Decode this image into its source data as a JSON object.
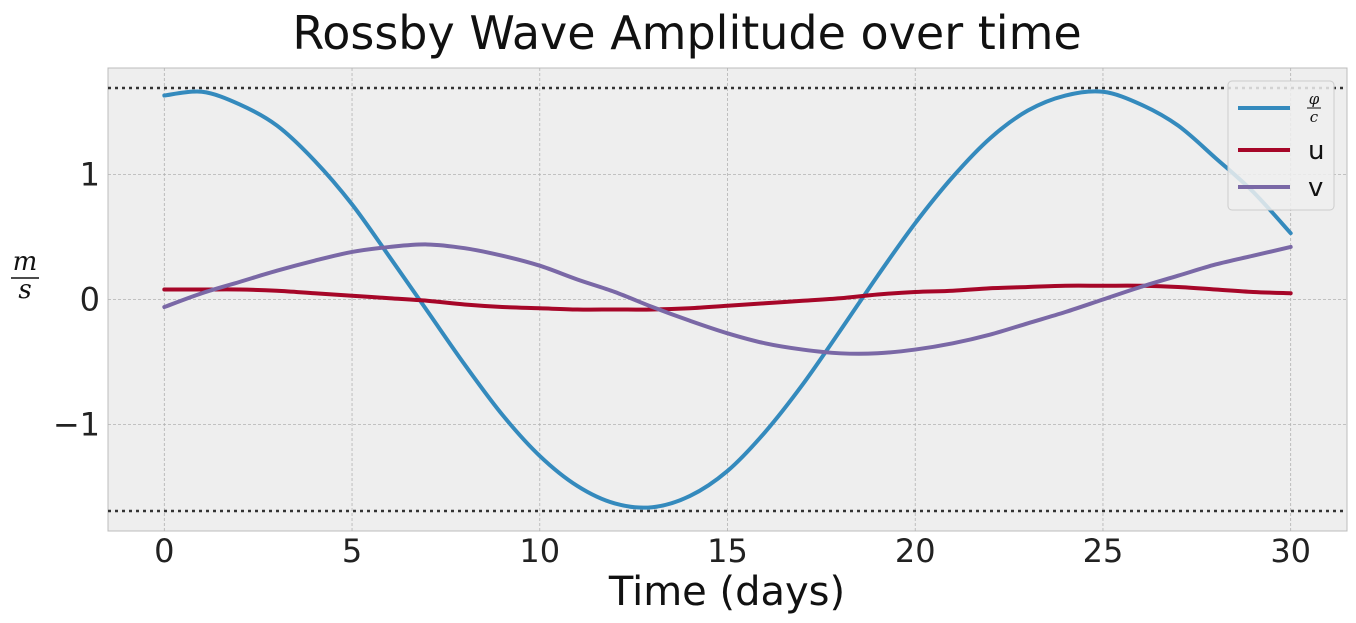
{
  "chart_data": {
    "type": "line",
    "title": "Rossby Wave Amplitude over time",
    "xlabel": "Time (days)",
    "ylabel": {
      "numerator": "m",
      "denominator": "s"
    },
    "xlim": [
      -1.5,
      31.5
    ],
    "ylim": [
      -1.85,
      1.85
    ],
    "xticks": [
      0,
      5,
      10,
      15,
      20,
      25,
      30
    ],
    "xtick_labels": [
      "0",
      "5",
      "10",
      "15",
      "20",
      "25",
      "30"
    ],
    "yticks": [
      -1,
      0,
      1
    ],
    "ytick_labels": [
      "−1",
      "0",
      "1"
    ],
    "grid": true,
    "legend_position": "top-right",
    "reference_lines": [
      1.69,
      -1.69
    ],
    "series": [
      {
        "name": {
          "numerator": "φ",
          "denominator": "c"
        },
        "legend_label": "φ/c",
        "color": "#348ABD",
        "x": [
          0,
          1,
          2,
          3,
          4,
          5,
          6,
          7,
          8,
          9,
          10,
          11,
          12,
          13,
          14,
          15,
          16,
          17,
          18,
          19,
          20,
          21,
          22,
          23,
          24,
          25,
          26,
          27,
          28,
          29,
          30
        ],
        "y": [
          1.63,
          1.66,
          1.56,
          1.39,
          1.11,
          0.76,
          0.34,
          -0.09,
          -0.52,
          -0.92,
          -1.25,
          -1.49,
          -1.63,
          -1.66,
          -1.57,
          -1.37,
          -1.06,
          -0.68,
          -0.25,
          0.19,
          0.61,
          0.98,
          1.29,
          1.51,
          1.63,
          1.66,
          1.56,
          1.39,
          1.13,
          0.86,
          0.53
        ]
      },
      {
        "name": "u",
        "legend_label": "u",
        "color": "#A60628",
        "x": [
          0,
          1,
          2,
          3,
          4,
          5,
          6,
          7,
          8,
          9,
          10,
          11,
          12,
          13,
          14,
          15,
          16,
          17,
          18,
          19,
          20,
          21,
          22,
          23,
          24,
          25,
          26,
          27,
          28,
          29,
          30
        ],
        "y": [
          0.08,
          0.08,
          0.08,
          0.07,
          0.05,
          0.03,
          0.01,
          -0.01,
          -0.04,
          -0.06,
          -0.07,
          -0.08,
          -0.08,
          -0.08,
          -0.07,
          -0.05,
          -0.03,
          -0.01,
          0.01,
          0.04,
          0.06,
          0.07,
          0.09,
          0.1,
          0.11,
          0.11,
          0.11,
          0.1,
          0.08,
          0.06,
          0.05
        ]
      },
      {
        "name": "v",
        "legend_label": "v",
        "color": "#7A68A6",
        "x": [
          0,
          1,
          2,
          3,
          4,
          5,
          6,
          7,
          8,
          9,
          10,
          11,
          12,
          13,
          14,
          15,
          16,
          17,
          18,
          19,
          20,
          21,
          22,
          23,
          24,
          25,
          26,
          27,
          28,
          29,
          30
        ],
        "y": [
          -0.06,
          0.05,
          0.14,
          0.23,
          0.31,
          0.38,
          0.42,
          0.44,
          0.41,
          0.35,
          0.27,
          0.16,
          0.06,
          -0.06,
          -0.17,
          -0.27,
          -0.35,
          -0.4,
          -0.43,
          -0.43,
          -0.4,
          -0.35,
          -0.28,
          -0.19,
          -0.1,
          0.0,
          0.1,
          0.19,
          0.28,
          0.35,
          0.42
        ]
      }
    ]
  }
}
